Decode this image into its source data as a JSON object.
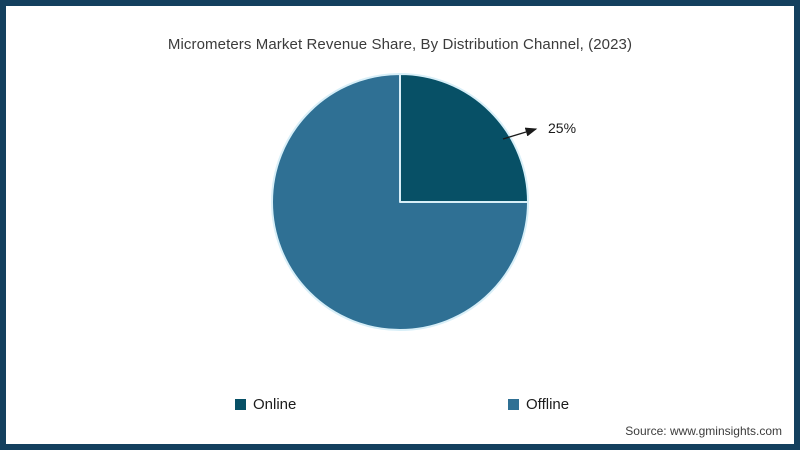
{
  "frame": {
    "border_color": "#14405e",
    "background_color": "#ffffff"
  },
  "chart_data": {
    "type": "pie",
    "title": "Micrometers Market Revenue Share, By Distribution Channel, (2023)",
    "slices": [
      {
        "label": "Online",
        "value": 25,
        "color": "#075066"
      },
      {
        "label": "Offline",
        "value": 75,
        "color": "#2f7094"
      }
    ],
    "start_angle_deg": -90,
    "direction": "clockwise",
    "separator_color": "#d8eff8",
    "annotation": {
      "label": "25%",
      "target_slice": "Online"
    },
    "legend_position": "bottom",
    "legend": [
      {
        "label": "Online",
        "color": "#075066"
      },
      {
        "label": "Offline",
        "color": "#2f7094"
      }
    ]
  },
  "source": {
    "text": "Source: www.gminsights.com"
  }
}
